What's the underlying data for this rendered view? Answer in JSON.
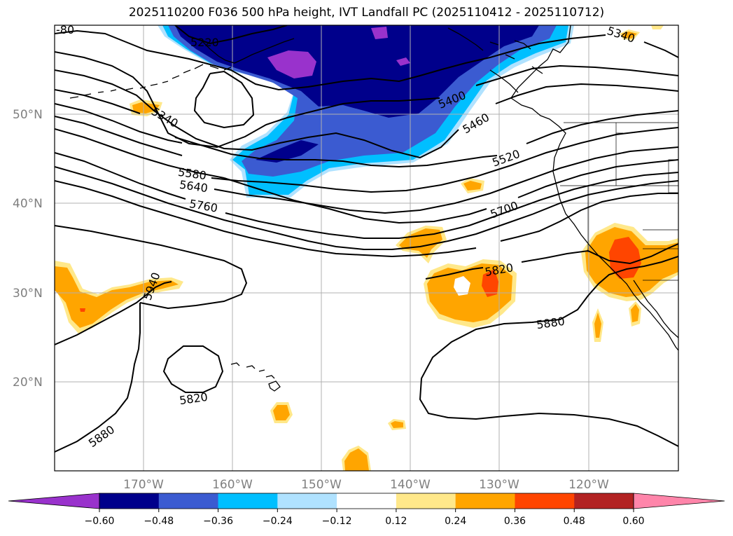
{
  "title": "2025110200 F036 500 hPa height, IVT Landfall PC (2025110412 - 2025110712)",
  "latitude_labels": [
    "50°N",
    "40°N",
    "30°N",
    "20°N"
  ],
  "longitude_labels": [
    "170°W",
    "160°W",
    "150°W",
    "140°W",
    "130°W",
    "120°W"
  ],
  "contour_labels": [
    "5220",
    "5340",
    "5340",
    "5400",
    "5460",
    "5520",
    "5580",
    "5640",
    "5700",
    "5760",
    "5820",
    "5820",
    "5880",
    "5880",
    "5940",
    "-80"
  ],
  "colorbar": {
    "tick_labels": [
      "−0.60",
      "−0.48",
      "−0.36",
      "−0.24",
      "−0.12",
      "0.12",
      "0.24",
      "0.36",
      "0.48",
      "0.60"
    ],
    "colors": [
      "#9932cc",
      "#00008b",
      "#3b5bd1",
      "#00bfff",
      "#b0e2ff",
      "#ffffff",
      "#ffe88a",
      "#ffa500",
      "#ff4500",
      "#b22222",
      "#ff85aa"
    ]
  },
  "colors": {
    "contour": "#000000",
    "grid": "#b0b0b0",
    "coast": "#000000"
  }
}
